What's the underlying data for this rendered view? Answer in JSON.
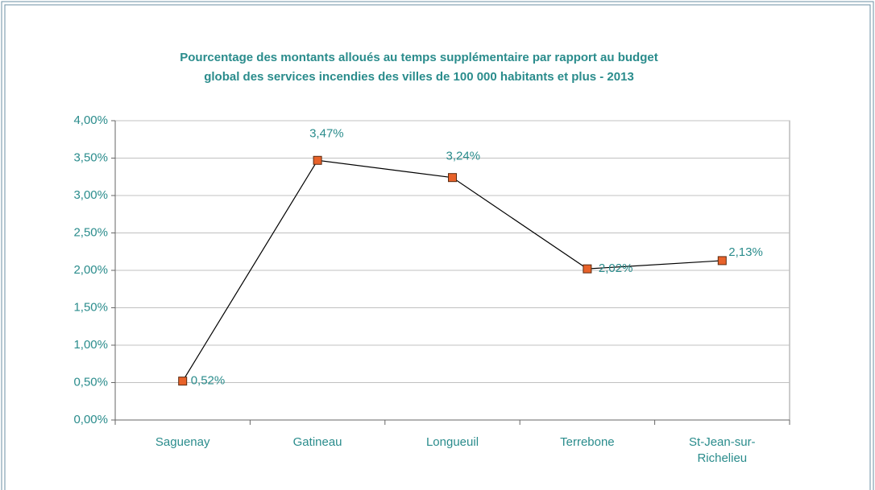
{
  "chart_data": {
    "type": "line",
    "title": [
      "Pourcentage des montants alloués au temps supplémentaire par rapport au budget",
      "global des services incendies des villes de 100 000 habitants et plus - 2013"
    ],
    "categories": [
      "Saguenay",
      "Gatineau",
      "Longueuil",
      "Terrebone",
      "St-Jean-sur-Richelieu"
    ],
    "values": [
      0.52,
      3.47,
      3.24,
      2.02,
      2.13
    ],
    "value_labels": [
      "0,52%",
      "3,47%",
      "3,24%",
      "2,02%",
      "2,13%"
    ],
    "color": "#000000",
    "marker_color": "#e8622a",
    "ylim": [
      0,
      4
    ],
    "yticks": [
      {
        "value": 0,
        "label": "0,00%"
      },
      {
        "value": 0.5,
        "label": "0,50%"
      },
      {
        "value": 1,
        "label": "1,00%"
      },
      {
        "value": 1.5,
        "label": "1,50%"
      },
      {
        "value": 2,
        "label": "2,00%"
      },
      {
        "value": 2.5,
        "label": "2,50%"
      },
      {
        "value": 3,
        "label": "3,00%"
      },
      {
        "value": 3.5,
        "label": "3,50%"
      },
      {
        "value": 4,
        "label": "4,00%"
      }
    ],
    "grid": true
  }
}
